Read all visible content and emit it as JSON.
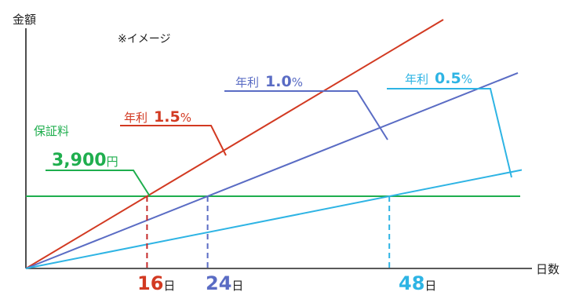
{
  "chart_data": {
    "type": "line",
    "ylabel": "金額",
    "xlabel": "日数",
    "note": "※イメージ",
    "colors": {
      "axis": "#222222",
      "fee": "#1fae4e",
      "rate_15": "#d23a22",
      "rate_10": "#5a6cc4",
      "rate_05": "#2eb4e4"
    },
    "fee": {
      "caption": "保証料",
      "amount_num": "3,900",
      "amount_unit": "円",
      "value": 3900
    },
    "series": [
      {
        "key": "rate_15",
        "prefix": "年利",
        "rate": "1.5",
        "pct": "%",
        "crossing_day": 16
      },
      {
        "key": "rate_10",
        "prefix": "年利",
        "rate": "1.0",
        "pct": "%",
        "crossing_day": 24
      },
      {
        "key": "rate_05",
        "prefix": "年利",
        "rate": "0.5",
        "pct": "%",
        "crossing_day": 48
      }
    ],
    "x_markers": [
      {
        "day": "16",
        "unit": "日",
        "key": "rate_15"
      },
      {
        "day": "24",
        "unit": "日",
        "key": "rate_10"
      },
      {
        "day": "48",
        "unit": "日",
        "key": "rate_05"
      }
    ]
  }
}
